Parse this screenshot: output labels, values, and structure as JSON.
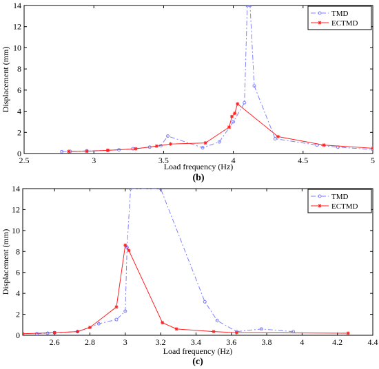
{
  "chart_data": [
    {
      "type": "line",
      "panel_label": "(b)",
      "xlabel": "Load frequency (Hz)",
      "ylabel": "Displacement (mm)",
      "xlim": [
        2.5,
        5
      ],
      "ylim": [
        0,
        14
      ],
      "xticks": [
        "2.5",
        "3",
        "3.5",
        "4",
        "4.5",
        "5"
      ],
      "yticks": [
        "0",
        "2",
        "4",
        "6",
        "8",
        "10",
        "12",
        "14"
      ],
      "legend": "top-right",
      "grid": false,
      "series": [
        {
          "name": "TMD",
          "color": "#7f7fff",
          "style": "dash-dot",
          "marker": "circle",
          "x": [
            2.77,
            2.83,
            2.95,
            3.1,
            3.18,
            3.28,
            3.4,
            3.48,
            3.53,
            3.78,
            3.9,
            4.0,
            4.08,
            4.1,
            4.12,
            4.15,
            4.3,
            4.6,
            4.75,
            5.0
          ],
          "y": [
            0.18,
            0.2,
            0.25,
            0.3,
            0.35,
            0.45,
            0.6,
            0.75,
            1.65,
            0.55,
            1.1,
            3.0,
            4.8,
            14.0,
            14.0,
            6.4,
            1.4,
            0.8,
            0.6,
            0.38
          ]
        },
        {
          "name": "ECTMD",
          "color": "#ff2020",
          "style": "solid",
          "marker": "star",
          "x": [
            2.82,
            2.95,
            3.1,
            3.3,
            3.45,
            3.55,
            3.8,
            3.97,
            3.99,
            4.01,
            4.03,
            4.32,
            4.65,
            5.0
          ],
          "y": [
            0.2,
            0.22,
            0.3,
            0.45,
            0.7,
            0.9,
            1.0,
            2.5,
            3.5,
            3.8,
            4.7,
            1.6,
            0.8,
            0.5
          ]
        }
      ]
    },
    {
      "type": "line",
      "panel_label": "(c)",
      "xlabel": "Load frequency (Hz)",
      "ylabel": "Displacement (mm)",
      "xlim": [
        2.42,
        4.4
      ],
      "ylim": [
        0,
        14
      ],
      "xticks": [
        "2.6",
        "2.8",
        "3",
        "3.2",
        "3.4",
        "3.6",
        "3.8",
        "4",
        "4.2",
        "4.4"
      ],
      "xtick_values": [
        2.6,
        2.8,
        3.0,
        3.2,
        3.4,
        3.6,
        3.8,
        4.0,
        4.2,
        4.4
      ],
      "yticks": [
        "0",
        "2",
        "4",
        "6",
        "8",
        "10",
        "12",
        "14"
      ],
      "legend": "top-right",
      "grid": false,
      "series": [
        {
          "name": "TMD",
          "color": "#7f7fff",
          "style": "dash-dot",
          "marker": "circle",
          "x": [
            2.5,
            2.56,
            2.6,
            2.73,
            2.85,
            2.95,
            3.0,
            3.01,
            3.03,
            3.2,
            3.45,
            3.52,
            3.63,
            3.77,
            3.95
          ],
          "y": [
            0.15,
            0.2,
            0.25,
            0.35,
            1.1,
            1.5,
            2.3,
            8.4,
            14.0,
            14.0,
            3.2,
            1.4,
            0.35,
            0.6,
            0.35
          ]
        },
        {
          "name": "ECTMD",
          "color": "#ff2020",
          "style": "solid",
          "marker": "star",
          "x": [
            2.42,
            2.6,
            2.73,
            2.8,
            2.95,
            3.0,
            3.02,
            3.21,
            3.29,
            3.5,
            3.63,
            4.26
          ],
          "y": [
            0.15,
            0.25,
            0.35,
            0.75,
            2.7,
            8.6,
            8.1,
            1.2,
            0.6,
            0.35,
            0.25,
            0.2
          ]
        }
      ]
    }
  ]
}
